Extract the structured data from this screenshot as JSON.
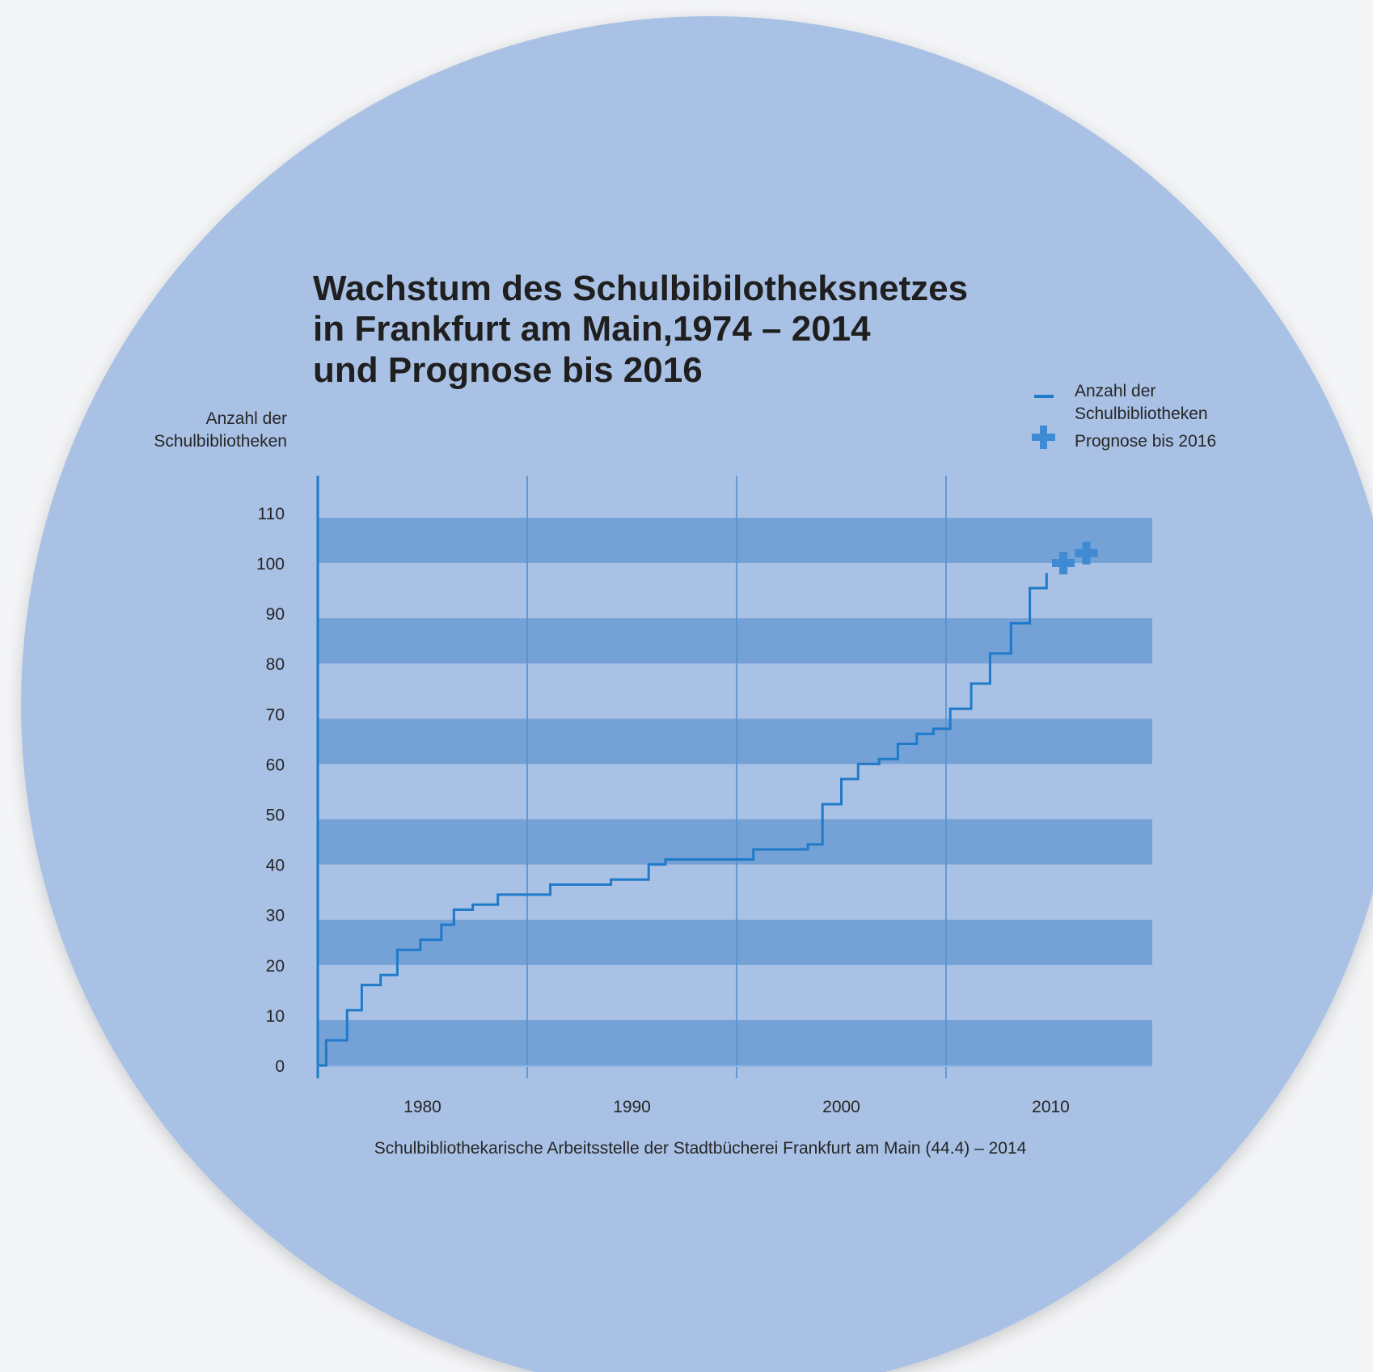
{
  "chart_data": {
    "type": "line",
    "title_lines": [
      "Wachstum des Schulbibilotheksnetzes",
      "in Frankfurt am Main,1974 – 2014",
      "und Prognose bis 2016"
    ],
    "ylabel_lines": [
      "Anzahl der",
      "Schulbibliotheken"
    ],
    "source": "Schulbibliothekarische Arbeitsstelle der Stadtbücherei Frankfurt am Main (44.4) – 2014",
    "legend": {
      "position": "top-right",
      "items": [
        {
          "symbol": "line",
          "lines": [
            "Anzahl der",
            "Schulbibliotheken"
          ]
        },
        {
          "symbol": "plus",
          "lines": [
            "Prognose bis 2016"
          ]
        }
      ]
    },
    "xlim": [
      1975,
      2015
    ],
    "ylim": [
      0,
      110
    ],
    "x_ticks": [
      1980,
      1990,
      2000,
      2010
    ],
    "y_ticks": [
      0,
      10,
      20,
      30,
      40,
      50,
      60,
      70,
      80,
      90,
      100,
      110
    ],
    "gridlines_x": [
      1975,
      1985,
      1995,
      2005
    ],
    "bands": [
      [
        0,
        9
      ],
      [
        20,
        29
      ],
      [
        40,
        49
      ],
      [
        60,
        69
      ],
      [
        80,
        89
      ],
      [
        100,
        109
      ]
    ],
    "colors": {
      "circle": "#a9c1e5",
      "band": "#74a1d6",
      "line": "#1f7ac9",
      "grid": "#5a93d0",
      "prognosis": "#3e8ad3"
    },
    "series": [
      {
        "name": "Anzahl der Schulbibliotheken",
        "type": "step",
        "points": [
          [
            1975.0,
            0
          ],
          [
            1975.4,
            5
          ],
          [
            1976.4,
            11
          ],
          [
            1977.1,
            16
          ],
          [
            1978.0,
            18
          ],
          [
            1978.8,
            23
          ],
          [
            1979.9,
            25
          ],
          [
            1980.9,
            28
          ],
          [
            1981.5,
            31
          ],
          [
            1982.4,
            32
          ],
          [
            1983.6,
            34
          ],
          [
            1986.1,
            36
          ],
          [
            1989.0,
            37
          ],
          [
            1990.8,
            40
          ],
          [
            1991.6,
            41
          ],
          [
            1995.8,
            43
          ],
          [
            1998.4,
            44
          ],
          [
            1999.1,
            52
          ],
          [
            2000.0,
            57
          ],
          [
            2000.8,
            60
          ],
          [
            2001.8,
            61
          ],
          [
            2002.7,
            64
          ],
          [
            2003.6,
            66
          ],
          [
            2004.4,
            67
          ],
          [
            2005.2,
            71
          ],
          [
            2006.2,
            76
          ],
          [
            2007.1,
            82
          ],
          [
            2008.1,
            88
          ],
          [
            2009.0,
            95
          ],
          [
            2009.8,
            98
          ],
          [
            2009.8,
            98
          ]
        ]
      },
      {
        "name": "Prognose bis 2016",
        "type": "scatter",
        "points": [
          [
            2010.6,
            100
          ],
          [
            2011.7,
            102
          ]
        ]
      }
    ]
  }
}
